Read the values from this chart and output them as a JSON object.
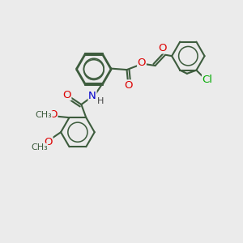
{
  "background_color": "#ebebeb",
  "bond_color": "#3d5c3d",
  "bond_width": 1.5,
  "atom_colors": {
    "O": "#dd0000",
    "N": "#0000cc",
    "Cl": "#00aa00",
    "C": "#3d5c3d"
  },
  "font_size": 8.5,
  "fig_width": 3.0,
  "fig_height": 3.0,
  "dpi": 100,
  "xlim": [
    0,
    10
  ],
  "ylim": [
    0,
    10
  ]
}
